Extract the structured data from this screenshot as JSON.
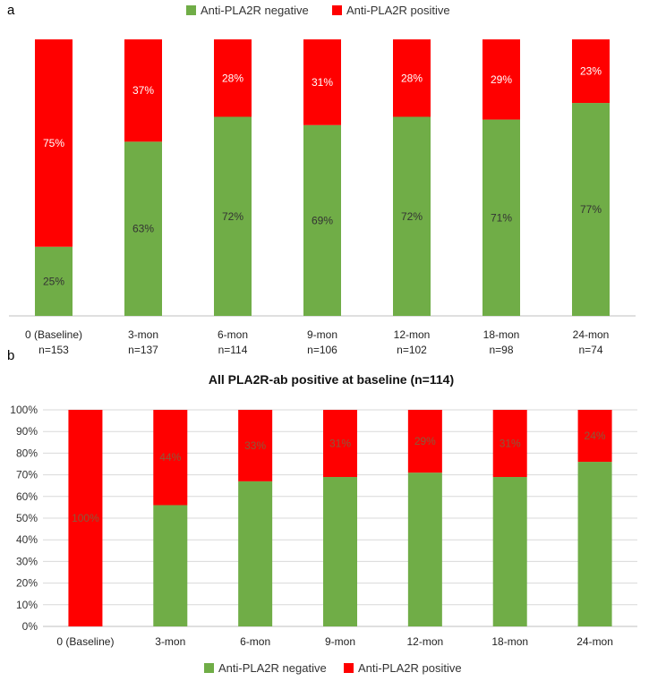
{
  "panels": [
    {
      "letter": "a",
      "legend": {
        "negative": "Anti-PLA2R negative",
        "positive": "Anti-PLA2R positive"
      }
    },
    {
      "letter": "b",
      "legend": {
        "negative": "Anti-PLA2R negative",
        "positive": "Anti-PLA2R positive"
      }
    }
  ],
  "colors": {
    "negative": "#70AD47",
    "positive": "#FF0000",
    "axis": "#d9d9d9",
    "grid": "#d9d9d9"
  },
  "chart_data": [
    {
      "type": "bar",
      "stacked": true,
      "title": "",
      "legend_position": "top",
      "grid": false,
      "categories": [
        "0 (Baseline)",
        "3-mon",
        "6-mon",
        "9-mon",
        "12-mon",
        "18-mon",
        "24-mon"
      ],
      "category_n": [
        "n=153",
        "n=137",
        "n=114",
        "n=106",
        "n=102",
        "n=98",
        "n=74"
      ],
      "series": [
        {
          "name": "Anti-PLA2R negative",
          "values": [
            25,
            63,
            72,
            69,
            72,
            71,
            77
          ],
          "labels": [
            "25%",
            "63%",
            "72%",
            "69%",
            "72%",
            "71%",
            "77%"
          ]
        },
        {
          "name": "Anti-PLA2R positive",
          "values": [
            75,
            37,
            28,
            31,
            28,
            29,
            23
          ],
          "labels": [
            "75%",
            "37%",
            "28%",
            "31%",
            "28%",
            "29%",
            "23%"
          ]
        }
      ],
      "ylim": [
        0,
        100
      ]
    },
    {
      "type": "bar",
      "stacked": true,
      "title": "All PLA2R-ab positive at baseline (n=114)",
      "legend_position": "bottom",
      "grid": true,
      "categories": [
        "0 (Baseline)",
        "3-mon",
        "6-mon",
        "9-mon",
        "12-mon",
        "18-mon",
        "24-mon"
      ],
      "series": [
        {
          "name": "Anti-PLA2R negative",
          "values": [
            0,
            56,
            67,
            69,
            71,
            69,
            76
          ],
          "labels": [
            "",
            "",
            "",
            "",
            "",
            "",
            ""
          ]
        },
        {
          "name": "Anti-PLA2R positive",
          "values": [
            100,
            44,
            33,
            31,
            29,
            31,
            24
          ],
          "labels": [
            "100%",
            "44%",
            "33%",
            "31%",
            "29%",
            "31%",
            "24%"
          ]
        }
      ],
      "yticks": [
        "0%",
        "10%",
        "20%",
        "30%",
        "40%",
        "50%",
        "60%",
        "70%",
        "80%",
        "90%",
        "100%"
      ],
      "ylim": [
        0,
        100
      ]
    }
  ]
}
